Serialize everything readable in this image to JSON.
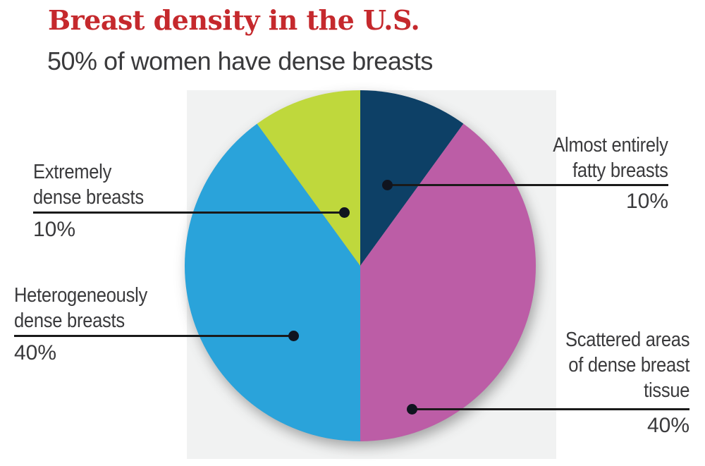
{
  "header": {
    "title": "Breast density in the U.S.",
    "subtitle": "50% of women have dense breasts"
  },
  "chart_data": {
    "type": "pie",
    "title": "Breast density in the U.S.",
    "subtitle": "50% of women have dense breasts",
    "start_angle_deg": 0,
    "direction": "clockwise",
    "legend_position": "callout-labels",
    "background_panel_color": "#f1f2f2",
    "slices": [
      {
        "label": "Almost entirely fatty breasts",
        "value_pct": 10,
        "color": "#0d4066"
      },
      {
        "label": "Scattered areas of dense breast tissue",
        "value_pct": 40,
        "color": "#bc5da6"
      },
      {
        "label": "Heterogeneously dense breasts",
        "value_pct": 40,
        "color": "#2aa3da"
      },
      {
        "label": "Extremely dense breasts",
        "value_pct": 10,
        "color": "#bfd83c"
      }
    ]
  },
  "callouts": {
    "fatty": {
      "lines": [
        "Almost entirely",
        "fatty breasts"
      ],
      "pct": "10%"
    },
    "scattered": {
      "lines": [
        "Scattered areas",
        "of dense breast",
        "tissue"
      ],
      "pct": "40%"
    },
    "hetero": {
      "lines": [
        "Heterogeneously",
        "dense breasts"
      ],
      "pct": "40%"
    },
    "extreme": {
      "lines": [
        "Extremely",
        "dense breasts"
      ],
      "pct": "10%"
    }
  },
  "colors": {
    "title_red": "#c5292d",
    "text_gray": "#3a3a3c",
    "leader_line": "#1a1a1a",
    "leader_dot": "#10141f"
  }
}
